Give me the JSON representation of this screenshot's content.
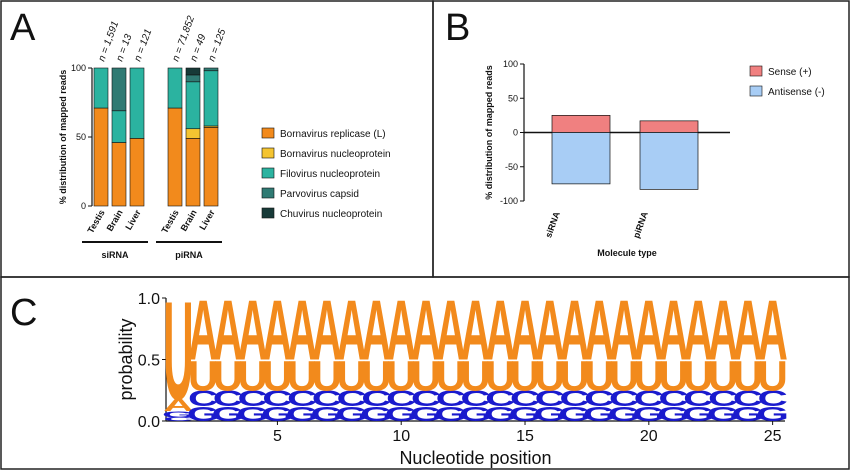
{
  "panels": {
    "a": "A",
    "b": "B",
    "c": "C"
  },
  "colors": {
    "bornavirus_replicase": "#F28A1C",
    "bornavirus_nucleoprotein": "#F4C431",
    "filovirus_nucleoprotein": "#2BB3A0",
    "parvovirus_capsid": "#2F7A73",
    "chuvirus_nucleoprotein": "#173A38",
    "sense": "#F08080",
    "antisense": "#A8CDF5",
    "logo_u": "#F28A1C",
    "logo_a": "#F28A1C",
    "logo_c": "#1A1ACD",
    "logo_g": "#1A1ACD"
  },
  "chart_data": [
    {
      "type": "bar",
      "stacked": true,
      "ylabel": "% distribution of mapped reads",
      "yticks": [
        "0",
        "50",
        "100"
      ],
      "ylim": [
        0,
        100
      ],
      "categories": [
        "Testis",
        "Brain",
        "Liver",
        "Testis",
        "Brain",
        "Liver"
      ],
      "groups": [
        {
          "label": "siRNA",
          "members": [
            0,
            1,
            2
          ]
        },
        {
          "label": "piRNA",
          "members": [
            3,
            4,
            5
          ]
        }
      ],
      "n_labels": [
        "n = 1,591",
        "n = 13",
        "n = 121",
        "n = 71,852",
        "n = 49",
        "n = 125"
      ],
      "series": [
        {
          "name": "Bornavirus replicase (L)",
          "color": "#F28A1C",
          "values": [
            71,
            46,
            49,
            71,
            49,
            57
          ]
        },
        {
          "name": "Bornavirus nucleoprotein",
          "color": "#F4C431",
          "values": [
            0,
            0,
            0,
            0,
            7,
            1
          ]
        },
        {
          "name": "Filovirus nucleoprotein",
          "color": "#2BB3A0",
          "values": [
            29,
            23,
            51,
            29,
            34,
            40
          ]
        },
        {
          "name": "Parvovirus capsid",
          "color": "#2F7A73",
          "values": [
            0,
            31,
            0,
            0,
            5,
            2
          ]
        },
        {
          "name": "Chuvirus nucleoprotein",
          "color": "#173A38",
          "values": [
            0,
            0,
            0,
            0,
            5,
            0
          ]
        }
      ],
      "legend": "right"
    },
    {
      "type": "bar",
      "ylabel": "% distribution of mapped reads",
      "xlabel": "Molecule type",
      "yticks": [
        "100",
        "50",
        "0",
        "-50",
        "-100"
      ],
      "ylim": [
        -100,
        100
      ],
      "categories": [
        "siRNA",
        "piRNA"
      ],
      "series": [
        {
          "name": "Sense (+)",
          "color": "#F08080",
          "values": [
            25,
            17
          ]
        },
        {
          "name": "Antisense (-)",
          "color": "#A8CDF5",
          "values": [
            -75,
            -83
          ]
        }
      ],
      "legend": "top-right"
    },
    {
      "type": "sequence-logo",
      "ylabel": "probability",
      "xlabel": "Nucleotide position",
      "yticks": [
        "0.0",
        "0.5",
        "1.0"
      ],
      "xticks": [
        "5",
        "10",
        "15",
        "20",
        "25"
      ],
      "ylim": [
        0,
        1
      ],
      "positions": [
        [
          [
            "C",
            0.03
          ],
          [
            "G",
            0.05
          ],
          [
            "A",
            0.1
          ],
          [
            "U",
            0.82
          ]
        ],
        [
          [
            "G",
            0.12
          ],
          [
            "C",
            0.13
          ],
          [
            "U",
            0.25
          ],
          [
            "A",
            0.5
          ]
        ],
        [
          [
            "G",
            0.12
          ],
          [
            "C",
            0.13
          ],
          [
            "U",
            0.25
          ],
          [
            "A",
            0.5
          ]
        ],
        [
          [
            "G",
            0.12
          ],
          [
            "C",
            0.13
          ],
          [
            "U",
            0.25
          ],
          [
            "A",
            0.5
          ]
        ],
        [
          [
            "G",
            0.12
          ],
          [
            "C",
            0.13
          ],
          [
            "U",
            0.25
          ],
          [
            "A",
            0.5
          ]
        ],
        [
          [
            "G",
            0.12
          ],
          [
            "C",
            0.13
          ],
          [
            "U",
            0.25
          ],
          [
            "A",
            0.5
          ]
        ],
        [
          [
            "G",
            0.12
          ],
          [
            "C",
            0.13
          ],
          [
            "U",
            0.25
          ],
          [
            "A",
            0.5
          ]
        ],
        [
          [
            "G",
            0.12
          ],
          [
            "C",
            0.13
          ],
          [
            "U",
            0.25
          ],
          [
            "A",
            0.5
          ]
        ],
        [
          [
            "G",
            0.12
          ],
          [
            "C",
            0.13
          ],
          [
            "U",
            0.25
          ],
          [
            "A",
            0.5
          ]
        ],
        [
          [
            "G",
            0.12
          ],
          [
            "C",
            0.13
          ],
          [
            "U",
            0.25
          ],
          [
            "A",
            0.5
          ]
        ],
        [
          [
            "G",
            0.12
          ],
          [
            "C",
            0.13
          ],
          [
            "U",
            0.25
          ],
          [
            "A",
            0.5
          ]
        ],
        [
          [
            "G",
            0.12
          ],
          [
            "C",
            0.13
          ],
          [
            "U",
            0.25
          ],
          [
            "A",
            0.5
          ]
        ],
        [
          [
            "G",
            0.12
          ],
          [
            "C",
            0.13
          ],
          [
            "U",
            0.25
          ],
          [
            "A",
            0.5
          ]
        ],
        [
          [
            "G",
            0.12
          ],
          [
            "C",
            0.13
          ],
          [
            "U",
            0.25
          ],
          [
            "A",
            0.5
          ]
        ],
        [
          [
            "G",
            0.12
          ],
          [
            "C",
            0.13
          ],
          [
            "U",
            0.25
          ],
          [
            "A",
            0.5
          ]
        ],
        [
          [
            "G",
            0.12
          ],
          [
            "C",
            0.13
          ],
          [
            "U",
            0.25
          ],
          [
            "A",
            0.5
          ]
        ],
        [
          [
            "G",
            0.12
          ],
          [
            "C",
            0.13
          ],
          [
            "U",
            0.25
          ],
          [
            "A",
            0.5
          ]
        ],
        [
          [
            "G",
            0.12
          ],
          [
            "C",
            0.13
          ],
          [
            "U",
            0.25
          ],
          [
            "A",
            0.5
          ]
        ],
        [
          [
            "G",
            0.12
          ],
          [
            "C",
            0.13
          ],
          [
            "U",
            0.25
          ],
          [
            "A",
            0.5
          ]
        ],
        [
          [
            "G",
            0.12
          ],
          [
            "C",
            0.13
          ],
          [
            "U",
            0.25
          ],
          [
            "A",
            0.5
          ]
        ],
        [
          [
            "G",
            0.12
          ],
          [
            "C",
            0.13
          ],
          [
            "U",
            0.25
          ],
          [
            "A",
            0.5
          ]
        ],
        [
          [
            "G",
            0.12
          ],
          [
            "C",
            0.13
          ],
          [
            "U",
            0.25
          ],
          [
            "A",
            0.5
          ]
        ],
        [
          [
            "G",
            0.12
          ],
          [
            "C",
            0.13
          ],
          [
            "U",
            0.25
          ],
          [
            "A",
            0.5
          ]
        ],
        [
          [
            "G",
            0.12
          ],
          [
            "C",
            0.13
          ],
          [
            "U",
            0.25
          ],
          [
            "A",
            0.5
          ]
        ],
        [
          [
            "G",
            0.12
          ],
          [
            "C",
            0.13
          ],
          [
            "U",
            0.25
          ],
          [
            "A",
            0.5
          ]
        ]
      ]
    }
  ]
}
